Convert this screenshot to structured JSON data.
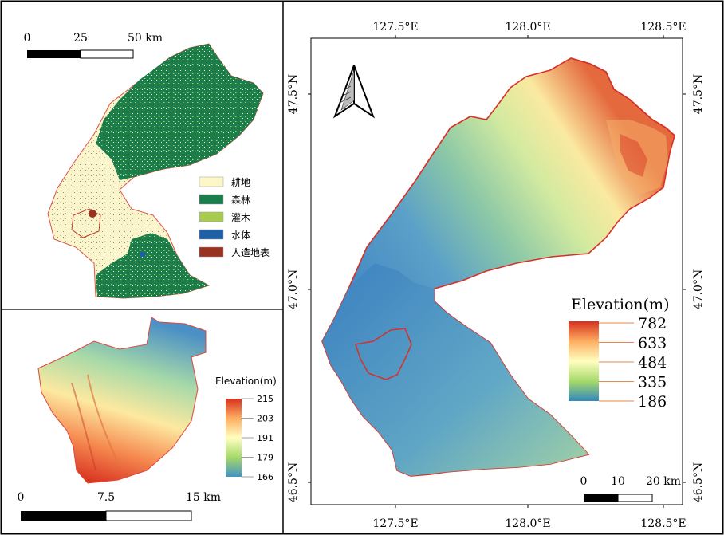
{
  "left_top_panel": {
    "scalebar": {
      "labels": [
        "0",
        "25",
        "50 km"
      ]
    },
    "legend": {
      "items": [
        {
          "label": "耕地",
          "color": "#fdf7c7"
        },
        {
          "label": "森林",
          "color": "#1b7c4c"
        },
        {
          "label": "灌木",
          "color": "#a7cc4d"
        },
        {
          "label": "水体",
          "color": "#1f5fa6"
        },
        {
          "label": "人造地表",
          "color": "#99331f"
        }
      ]
    }
  },
  "left_bottom_panel": {
    "legend": {
      "title": "Elevation(m)",
      "ticks": [
        "215",
        "203",
        "191",
        "179",
        "166"
      ],
      "gradient": [
        "#d7301f",
        "#fdae61",
        "#ffffbf",
        "#a6d96a",
        "#4393c3"
      ]
    },
    "scalebar": {
      "labels": [
        "0",
        "7.5",
        "15 km"
      ]
    }
  },
  "right_panel": {
    "top_axis_labels": [
      "127.5°E",
      "128.0°E",
      "128.5°E"
    ],
    "bottom_axis_labels": [
      "127.5°E",
      "128.0°E",
      "128.5°E"
    ],
    "left_axis_labels": [
      "47.5°N",
      "47.0°N",
      "46.5°N"
    ],
    "right_axis_labels": [
      "47.5°N",
      "47.0°N",
      "46.5°N"
    ],
    "legend": {
      "title": "Elevation(m)",
      "ticks": [
        "782",
        "633",
        "484",
        "335",
        "186"
      ],
      "gradient": [
        "#d7301f",
        "#fdae61",
        "#ffffbf",
        "#a6d96a",
        "#3288bd"
      ]
    },
    "scalebar": {
      "labels": [
        "0",
        "10",
        "20 km"
      ]
    },
    "boundary_color": "#d73027"
  }
}
